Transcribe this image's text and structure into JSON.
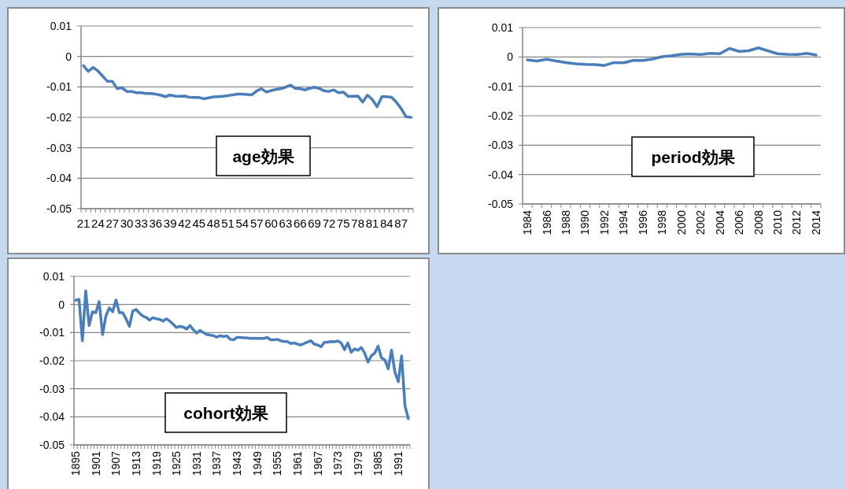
{
  "chart_data": [
    {
      "type": "line",
      "title": "age効果",
      "color": "#4a7ebb",
      "grid": "y",
      "ylim": [
        -0.05,
        0.01
      ],
      "yticks": [
        0.01,
        0,
        -0.01,
        -0.02,
        -0.03,
        -0.04,
        -0.05
      ],
      "categories": [
        "21",
        null,
        null,
        "24",
        null,
        null,
        "27",
        null,
        null,
        "30",
        null,
        null,
        "33",
        null,
        null,
        "36",
        null,
        null,
        "39",
        null,
        null,
        "42",
        null,
        null,
        "45",
        null,
        null,
        "48",
        null,
        null,
        "51",
        null,
        null,
        "54",
        null,
        null,
        "57",
        null,
        null,
        "60",
        null,
        null,
        "63",
        null,
        null,
        "66",
        null,
        null,
        "69",
        null,
        null,
        "72",
        null,
        null,
        "75",
        null,
        null,
        "78",
        null,
        null,
        "81",
        null,
        null,
        "84",
        null,
        null,
        "87",
        null,
        null
      ],
      "values": [
        -0.003,
        -0.0049,
        -0.0036,
        -0.0048,
        -0.0065,
        -0.0082,
        -0.0082,
        -0.0106,
        -0.0103,
        -0.0115,
        -0.0115,
        -0.0119,
        -0.0119,
        -0.0122,
        -0.0122,
        -0.0124,
        -0.0127,
        -0.0132,
        -0.0127,
        -0.013,
        -0.0131,
        -0.013,
        -0.0134,
        -0.0135,
        -0.0135,
        -0.0139,
        -0.0136,
        -0.0133,
        -0.0132,
        -0.0131,
        -0.0129,
        -0.0126,
        -0.0124,
        -0.0124,
        -0.0125,
        -0.0126,
        -0.0113,
        -0.0106,
        -0.0117,
        -0.0112,
        -0.0108,
        -0.0106,
        -0.0101,
        -0.0094,
        -0.0105,
        -0.0106,
        -0.011,
        -0.0105,
        -0.0101,
        -0.0105,
        -0.0113,
        -0.0115,
        -0.011,
        -0.0119,
        -0.0117,
        -0.0131,
        -0.0131,
        -0.013,
        -0.015,
        -0.0127,
        -0.0141,
        -0.0165,
        -0.0132,
        -0.0132,
        -0.0134,
        -0.015,
        -0.0171,
        -0.0198,
        -0.02
      ]
    },
    {
      "type": "line",
      "title": "period効果",
      "color": "#4a7ebb",
      "grid": "y",
      "ylim": [
        -0.05,
        0.01
      ],
      "yticks": [
        0.01,
        0,
        -0.01,
        -0.02,
        -0.03,
        -0.04,
        -0.05
      ],
      "categories": [
        "1984",
        null,
        "1986",
        null,
        "1988",
        null,
        "1990",
        null,
        "1992",
        null,
        "1994",
        null,
        "1996",
        null,
        "1998",
        null,
        "2000",
        null,
        "2002",
        null,
        "2004",
        null,
        "2006",
        null,
        "2008",
        null,
        "2010",
        null,
        "2012",
        null,
        "2014"
      ],
      "values": [
        -0.001,
        -0.0014,
        -0.0008,
        -0.0014,
        -0.0019,
        -0.0023,
        -0.0025,
        -0.0026,
        -0.0029,
        -0.0019,
        -0.002,
        -0.0012,
        -0.0012,
        -0.0007,
        0.0001,
        0.0004,
        0.0009,
        0.001,
        0.0008,
        0.0012,
        0.0011,
        0.0029,
        0.0019,
        0.0021,
        0.0031,
        0.0021,
        0.0011,
        0.0009,
        0.0008,
        0.0012,
        0.0007
      ]
    },
    {
      "type": "line",
      "title": "cohort効果",
      "color": "#4a7ebb",
      "grid": "y",
      "ylim": [
        -0.05,
        0.01
      ],
      "yticks": [
        0.01,
        0,
        -0.01,
        -0.02,
        -0.03,
        -0.04,
        -0.05
      ],
      "categories": [
        "1895",
        null,
        null,
        null,
        null,
        null,
        "1901",
        null,
        null,
        null,
        null,
        null,
        "1907",
        null,
        null,
        null,
        null,
        null,
        "1913",
        null,
        null,
        null,
        null,
        null,
        "1919",
        null,
        null,
        null,
        null,
        null,
        "1925",
        null,
        null,
        null,
        null,
        null,
        "1931",
        null,
        null,
        null,
        null,
        null,
        "1937",
        null,
        null,
        null,
        null,
        null,
        "1943",
        null,
        null,
        null,
        null,
        null,
        "1949",
        null,
        null,
        null,
        null,
        null,
        "1955",
        null,
        null,
        null,
        null,
        null,
        "1961",
        null,
        null,
        null,
        null,
        null,
        "1967",
        null,
        null,
        null,
        null,
        null,
        "1973",
        null,
        null,
        null,
        null,
        null,
        "1979",
        null,
        null,
        null,
        null,
        null,
        "1985",
        null,
        null,
        null,
        null,
        null,
        "1991",
        null,
        null,
        null
      ],
      "values": [
        0.0015,
        0.0018,
        -0.0129,
        0.0049,
        -0.0075,
        -0.0026,
        -0.0029,
        0.001,
        -0.0107,
        -0.0041,
        -0.0012,
        -0.0026,
        0.0016,
        -0.0029,
        -0.0029,
        -0.0051,
        -0.0078,
        -0.0023,
        -0.0018,
        -0.0031,
        -0.0041,
        -0.0046,
        -0.0056,
        -0.0047,
        -0.0051,
        -0.0053,
        -0.0059,
        -0.0051,
        -0.0059,
        -0.007,
        -0.0082,
        -0.0078,
        -0.008,
        -0.0088,
        -0.0075,
        -0.009,
        -0.0102,
        -0.0092,
        -0.01,
        -0.0107,
        -0.0109,
        -0.0111,
        -0.0116,
        -0.0111,
        -0.0114,
        -0.0112,
        -0.0124,
        -0.0126,
        -0.0117,
        -0.0117,
        -0.0119,
        -0.0119,
        -0.0121,
        -0.012,
        -0.0121,
        -0.0121,
        -0.0121,
        -0.0117,
        -0.0126,
        -0.0126,
        -0.0124,
        -0.0129,
        -0.0132,
        -0.0132,
        -0.0139,
        -0.0137,
        -0.0141,
        -0.0144,
        -0.0139,
        -0.0134,
        -0.0129,
        -0.0141,
        -0.0144,
        -0.0151,
        -0.0135,
        -0.0134,
        -0.0132,
        -0.0133,
        -0.013,
        -0.0137,
        -0.0161,
        -0.0137,
        -0.017,
        -0.0158,
        -0.0163,
        -0.0153,
        -0.0173,
        -0.0205,
        -0.0183,
        -0.0173,
        -0.0148,
        -0.019,
        -0.0197,
        -0.0229,
        -0.0163,
        -0.0241,
        -0.0275,
        -0.0183,
        -0.0361,
        -0.0407
      ]
    }
  ]
}
